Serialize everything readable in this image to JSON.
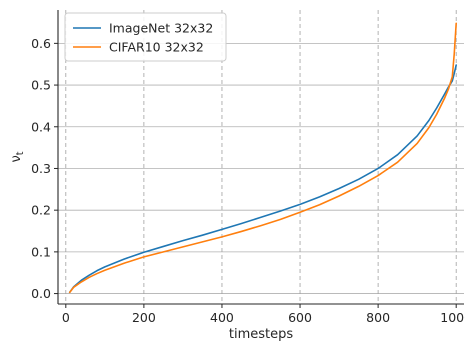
{
  "chart_data": {
    "type": "line",
    "xlabel": "timesteps",
    "ylabel": "ν",
    "ylabel_subscript": "t",
    "xlim": [
      -20,
      1020
    ],
    "ylim": [
      -0.025,
      0.68
    ],
    "x_ticks": [
      0,
      200,
      400,
      600,
      800,
      1000
    ],
    "x_tick_labels": [
      "0",
      "200",
      "400",
      "600",
      "800",
      "1000"
    ],
    "y_ticks": [
      0.0,
      0.1,
      0.2,
      0.3,
      0.4,
      0.5,
      0.6
    ],
    "y_tick_labels": [
      "0.0",
      "0.1",
      "0.2",
      "0.3",
      "0.4",
      "0.5",
      "0.6"
    ],
    "grid": {
      "x": "dashed",
      "y": "solid"
    },
    "legend_position": "top-left",
    "x": [
      10,
      20,
      40,
      60,
      80,
      100,
      150,
      200,
      250,
      300,
      350,
      400,
      450,
      500,
      550,
      600,
      650,
      700,
      750,
      800,
      850,
      900,
      930,
      950,
      970,
      980,
      990,
      995,
      1000
    ],
    "series": [
      {
        "name": "ImageNet 32x32",
        "color": "#1f77b4",
        "values": [
          0.003,
          0.016,
          0.032,
          0.044,
          0.055,
          0.064,
          0.083,
          0.099,
          0.113,
          0.127,
          0.14,
          0.154,
          0.168,
          0.183,
          0.198,
          0.214,
          0.232,
          0.252,
          0.274,
          0.3,
          0.333,
          0.378,
          0.415,
          0.445,
          0.478,
          0.495,
          0.51,
          0.528,
          0.548
        ]
      },
      {
        "name": "CIFAR10 32x32",
        "color": "#ff7f0e",
        "values": [
          0.003,
          0.015,
          0.028,
          0.039,
          0.048,
          0.056,
          0.073,
          0.088,
          0.1,
          0.112,
          0.124,
          0.136,
          0.149,
          0.163,
          0.178,
          0.195,
          0.213,
          0.234,
          0.257,
          0.283,
          0.315,
          0.36,
          0.398,
          0.43,
          0.468,
          0.49,
          0.52,
          0.575,
          0.648
        ]
      }
    ]
  }
}
